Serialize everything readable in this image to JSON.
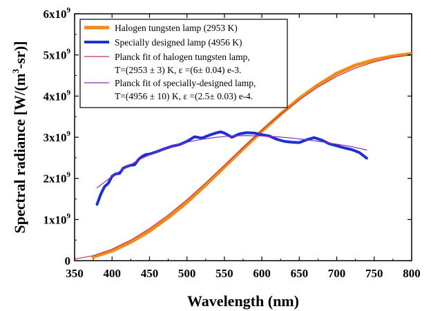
{
  "chart_data": {
    "type": "line",
    "xlabel": "Wavelength (nm)",
    "ylabel": "Spectral radiance [W/(m",
    "ylabel_sup": "3",
    "ylabel_tail": "-sr)]",
    "xlim": [
      350,
      800
    ],
    "ylim": [
      0,
      6000000000
    ],
    "x_ticks": [
      350,
      400,
      450,
      500,
      550,
      600,
      650,
      700,
      750,
      800
    ],
    "x_tick_labels": [
      "350",
      "400",
      "450",
      "500",
      "550",
      "600",
      "650",
      "700",
      "750",
      "800"
    ],
    "y_ticks": [
      0,
      1000000000,
      2000000000,
      3000000000,
      4000000000,
      5000000000,
      6000000000
    ],
    "y_tick_labels": [
      {
        "base": "0",
        "sup": ""
      },
      {
        "base": "1x10",
        "sup": "9"
      },
      {
        "base": "2x10",
        "sup": "9"
      },
      {
        "base": "3x10",
        "sup": "9"
      },
      {
        "base": "4x10",
        "sup": "9"
      },
      {
        "base": "5x10",
        "sup": "9"
      },
      {
        "base": "6x10",
        "sup": "9"
      }
    ],
    "grid": false,
    "legend_position": "top-left",
    "series": [
      {
        "name": "Halogen tungsten lamp (2953 K)",
        "color": "#f08a1c",
        "x": [
          375,
          400,
          425,
          450,
          475,
          500,
          525,
          550,
          575,
          600,
          625,
          650,
          675,
          700,
          725,
          750,
          775,
          800
        ],
        "y": [
          90000000,
          240000000,
          450000000,
          720000000,
          1050000000,
          1420000000,
          1840000000,
          2280000000,
          2720000000,
          3150000000,
          3560000000,
          3940000000,
          4270000000,
          4550000000,
          4750000000,
          4880000000,
          4970000000,
          5030000000
        ]
      },
      {
        "name": "Specially designed lamp (4956 K)",
        "color": "#1a2fd4",
        "x": [
          380,
          385,
          390,
          395,
          400,
          405,
          410,
          415,
          420,
          425,
          430,
          435,
          440,
          445,
          450,
          460,
          470,
          480,
          490,
          500,
          510,
          520,
          530,
          540,
          545,
          550,
          560,
          570,
          580,
          590,
          600,
          610,
          620,
          630,
          640,
          650,
          660,
          670,
          680,
          690,
          700,
          710,
          720,
          730,
          740
        ],
        "y": [
          1370000000,
          1620000000,
          1800000000,
          1880000000,
          2050000000,
          2110000000,
          2120000000,
          2250000000,
          2290000000,
          2320000000,
          2330000000,
          2450000000,
          2530000000,
          2580000000,
          2590000000,
          2650000000,
          2720000000,
          2780000000,
          2820000000,
          2900000000,
          3010000000,
          2980000000,
          3050000000,
          3110000000,
          3130000000,
          3100000000,
          3000000000,
          3080000000,
          3110000000,
          3100000000,
          3060000000,
          3030000000,
          2950000000,
          2900000000,
          2880000000,
          2870000000,
          2940000000,
          2990000000,
          2930000000,
          2840000000,
          2790000000,
          2740000000,
          2700000000,
          2630000000,
          2490000000
        ]
      },
      {
        "name": "Planck fit of halogen tungsten lamp,",
        "name_line2": "T=(2953 ± 3) K, ε =(6± 0.04) e-3.",
        "color": "#c8374a",
        "x": [
          350,
          375,
          400,
          425,
          450,
          475,
          500,
          525,
          550,
          575,
          600,
          625,
          650,
          675,
          700,
          725,
          750,
          775,
          800
        ],
        "y": [
          40000000,
          120000000,
          280000000,
          500000000,
          780000000,
          1110000000,
          1480000000,
          1890000000,
          2320000000,
          2750000000,
          3170000000,
          3560000000,
          3910000000,
          4220000000,
          4480000000,
          4680000000,
          4830000000,
          4940000000,
          5000000000
        ]
      },
      {
        "name": "Planck fit of specially-designed lamp,",
        "name_line2": "T=(4956 ± 10) K, ε =(2.5± 0.03) e-4.",
        "color": "#8a2cb8",
        "x": [
          380,
          400,
          420,
          440,
          460,
          480,
          500,
          520,
          540,
          560,
          580,
          600,
          620,
          640,
          660,
          680,
          700,
          720,
          740
        ],
        "y": [
          1770000000,
          2050000000,
          2290000000,
          2490000000,
          2650000000,
          2780000000,
          2880000000,
          2950000000,
          3000000000,
          3030000000,
          3040000000,
          3030000000,
          3010000000,
          2980000000,
          2940000000,
          2890000000,
          2830000000,
          2770000000,
          2690000000
        ]
      }
    ]
  }
}
